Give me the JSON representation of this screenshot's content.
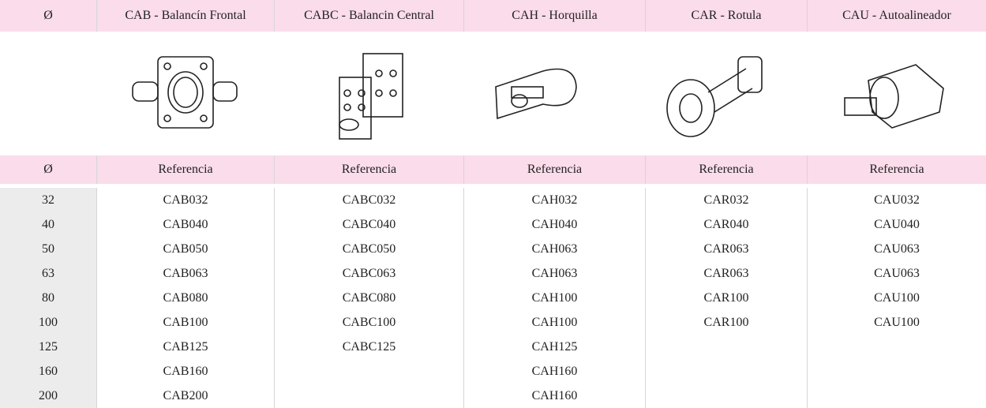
{
  "header": {
    "columns": [
      "Ø",
      "CAB - Balancín Frontal",
      "CABC - Balancin Central",
      "CAH - Horquilla",
      "CAR - Rotula",
      "CAU - Autoalineador"
    ]
  },
  "subheader": {
    "columns": [
      "Ø",
      "Referencia",
      "Referencia",
      "Referencia",
      "Referencia",
      "Referencia"
    ]
  },
  "table": {
    "rows": [
      [
        32,
        "CAB032",
        "CABC032",
        "CAH032",
        "CAR032",
        "CAU032"
      ],
      [
        40,
        "CAB040",
        "CABC040",
        "CAH040",
        "CAR040",
        "CAU040"
      ],
      [
        50,
        "CAB050",
        "CABC050",
        "CAH063",
        "CAR063",
        "CAU063"
      ],
      [
        63,
        "CAB063",
        "CABC063",
        "CAH063",
        "CAR063",
        "CAU063"
      ],
      [
        80,
        "CAB080",
        "CABC080",
        "CAH100",
        "CAR100",
        "CAU100"
      ],
      [
        100,
        "CAB100",
        "CABC100",
        "CAH100",
        "CAR100",
        "CAU100"
      ],
      [
        125,
        "CAB125",
        "CABC125",
        "CAH125",
        null,
        null
      ],
      [
        160,
        "CAB160",
        null,
        "CAH160",
        null,
        null
      ],
      [
        200,
        "CAB200",
        null,
        "CAH160",
        null,
        null
      ]
    ]
  }
}
